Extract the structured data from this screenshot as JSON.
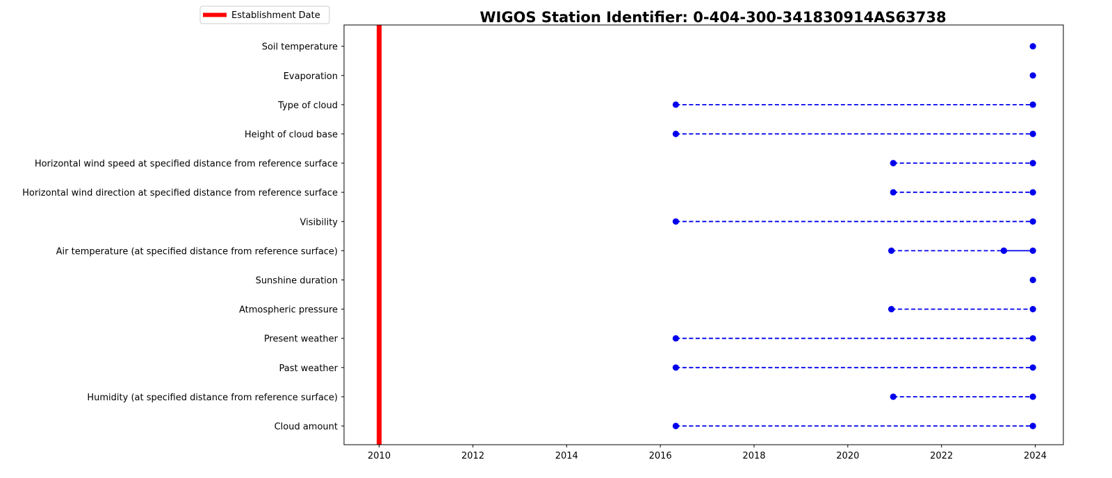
{
  "chart_data": {
    "type": "timeline",
    "title": "WIGOS Station Identifier: 0-404-300-341830914AS63738",
    "xlabel": "",
    "ylabel": "",
    "xlim": [
      2009.25,
      2024.6
    ],
    "x_ticks": [
      "2010",
      "2012",
      "2014",
      "2016",
      "2018",
      "2020",
      "2022",
      "2024"
    ],
    "x_tick_values": [
      2010,
      2012,
      2014,
      2016,
      2018,
      2020,
      2022,
      2024
    ],
    "grid": false,
    "legend": {
      "placement": "top-left",
      "entries": [
        {
          "label": "Establishment Date",
          "color": "#ff0000"
        }
      ]
    },
    "establishment_date": 2010.0,
    "establishment_color": "#ff0000",
    "series_color": "#0000ee",
    "variables": [
      {
        "name": "Cloud amount",
        "segments": [
          {
            "start": 2016.33,
            "end": 2023.95,
            "style": "dashed"
          }
        ]
      },
      {
        "name": "Humidity  (at specified distance from reference surface)",
        "segments": [
          {
            "start": 2020.97,
            "end": 2023.95,
            "style": "dashed"
          }
        ]
      },
      {
        "name": "Past weather",
        "segments": [
          {
            "start": 2016.33,
            "end": 2023.95,
            "style": "dashed"
          }
        ]
      },
      {
        "name": "Present weather",
        "segments": [
          {
            "start": 2016.33,
            "end": 2023.95,
            "style": "dashed"
          }
        ]
      },
      {
        "name": "Atmospheric pressure",
        "segments": [
          {
            "start": 2020.93,
            "end": 2023.95,
            "style": "dashed"
          }
        ]
      },
      {
        "name": "Sunshine duration",
        "segments": [
          {
            "start": 2023.95,
            "end": 2023.95,
            "style": "point"
          }
        ]
      },
      {
        "name": "Air temperature (at specified distance from reference surface)",
        "segments": [
          {
            "start": 2020.93,
            "end": 2023.33,
            "style": "dashed"
          },
          {
            "start": 2023.33,
            "end": 2023.95,
            "style": "solid"
          }
        ]
      },
      {
        "name": "Visibility",
        "segments": [
          {
            "start": 2016.33,
            "end": 2023.95,
            "style": "dashed"
          }
        ]
      },
      {
        "name": "Horizontal wind direction at specified distance from reference surface",
        "segments": [
          {
            "start": 2020.97,
            "end": 2023.95,
            "style": "dashed"
          }
        ]
      },
      {
        "name": "Horizontal wind speed at specified distance from reference surface",
        "segments": [
          {
            "start": 2020.97,
            "end": 2023.95,
            "style": "dashed"
          }
        ]
      },
      {
        "name": "Height of cloud base",
        "segments": [
          {
            "start": 2016.33,
            "end": 2023.95,
            "style": "dashed"
          }
        ]
      },
      {
        "name": "Type of cloud",
        "segments": [
          {
            "start": 2016.33,
            "end": 2023.95,
            "style": "dashed"
          }
        ]
      },
      {
        "name": "Evaporation",
        "segments": [
          {
            "start": 2023.95,
            "end": 2023.95,
            "style": "point"
          }
        ]
      },
      {
        "name": "Soil temperature",
        "segments": [
          {
            "start": 2023.95,
            "end": 2023.95,
            "style": "point"
          }
        ]
      }
    ]
  }
}
